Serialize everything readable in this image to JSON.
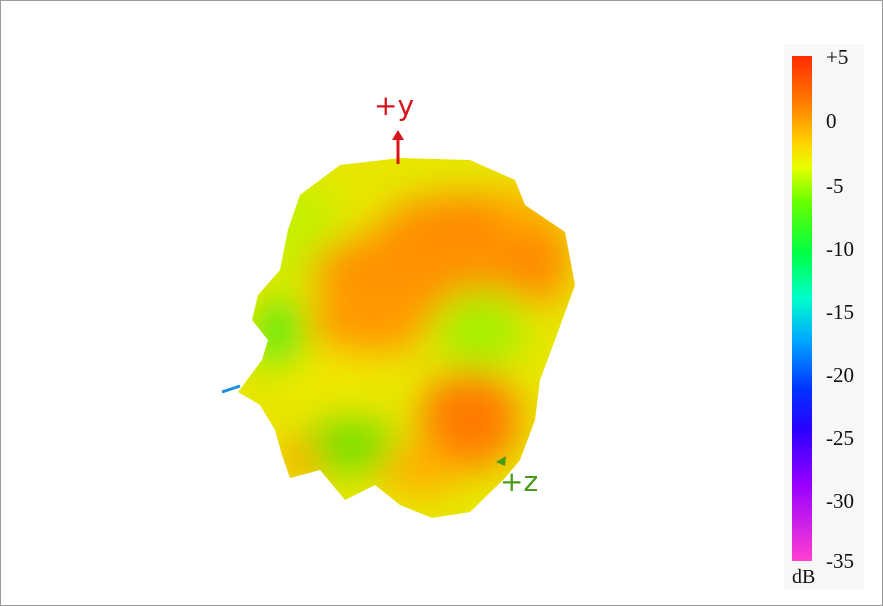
{
  "chart_data": {
    "type": "heatmap",
    "colorbar": {
      "ticks": [
        "+5",
        "0",
        "-5",
        "-10",
        "-15",
        "-20",
        "-25",
        "-30",
        "-35"
      ],
      "unit": "dB",
      "range": [
        -35,
        5
      ],
      "colors": [
        "#ff2a00",
        "#ff7a00",
        "#ffd000",
        "#e8ff00",
        "#66ff00",
        "#00ff44",
        "#00ffcc",
        "#00aaff",
        "#0033ff",
        "#2a00ff",
        "#9900ff",
        "#ff40d0"
      ]
    },
    "axes": [
      {
        "label": "+y",
        "color": "#d8141c"
      },
      {
        "label": "+z",
        "color": "#4a9a1a"
      },
      {
        "label": "",
        "color": "#1e8fd8"
      }
    ]
  }
}
